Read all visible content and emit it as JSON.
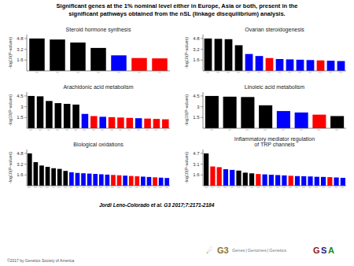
{
  "title": "Significant genes at the 1% nominal level either in Europe, Asia or both, present in the",
  "subtitle": "significant pathways obtained from the nSL (linkage disequilibrium) analysis.",
  "annotations": [
    "Jordi Leno-Colorado et al. G3 2017;7:2171-2184",
    "©2017 by Genetics Society of America",
    "☄",
    "G3",
    "Genes | Genomes | Genetics",
    "G",
    "S",
    "A"
  ],
  "chart_data": [
    {
      "type": "bar",
      "title": "Steroid hormone synthesis",
      "ylabel": "-log10(P-values)",
      "categories": [
        "|",
        "|",
        "|",
        "|",
        "|",
        "|",
        "|"
      ],
      "values": [
        4.8,
        4.65,
        4.2,
        3.4,
        2.3,
        1.9,
        1.85
      ],
      "colors": [
        "black",
        "black",
        "black",
        "black",
        "blue",
        "red",
        "red"
      ],
      "ylim": [
        0,
        5.376
      ],
      "yticks": [
        1.6,
        3.2,
        4.8
      ],
      "grid": false
    },
    {
      "type": "bar",
      "title": "Ovarian steroidogenesis",
      "ylabel": "-log10(P-values)",
      "categories": [
        "|",
        "|",
        "|",
        "|",
        "|",
        "|",
        "|",
        "|",
        "|",
        "|",
        "|",
        "|",
        "|",
        "|"
      ],
      "values": [
        4.8,
        4.75,
        4.7,
        3.8,
        2.5,
        2.2,
        1.9,
        1.75,
        1.7,
        1.65,
        1.6,
        1.55,
        1.5,
        1.45
      ],
      "colors": [
        "black",
        "black",
        "black",
        "black",
        "blue",
        "blue",
        "red",
        "blue",
        "blue",
        "blue",
        "blue",
        "red",
        "blue",
        "blue"
      ],
      "ylim": [
        0,
        5.376
      ],
      "yticks": [
        1.6,
        3.2,
        4.8
      ],
      "grid": false
    },
    {
      "type": "bar",
      "title": "Arachidonic acid metabolism",
      "ylabel": "-log10(P-values)",
      "categories": [
        "|",
        "|",
        "|",
        "|",
        "|",
        "|",
        "|",
        "|",
        "|",
        "|",
        "|",
        "|",
        "|",
        "|",
        "|",
        "|"
      ],
      "values": [
        4.5,
        4.45,
        3.8,
        3.5,
        3.4,
        3.3,
        2.0,
        1.7,
        1.6,
        1.55,
        1.5,
        1.45,
        1.4,
        1.35,
        1.3,
        1.25
      ],
      "colors": [
        "black",
        "black",
        "black",
        "black",
        "black",
        "black",
        "blue",
        "red",
        "blue",
        "red",
        "red",
        "red",
        "blue",
        "red",
        "red",
        "red"
      ],
      "ylim": [
        0,
        5.04
      ],
      "yticks": [
        1.5,
        3,
        4.5
      ],
      "grid": false
    },
    {
      "type": "bar",
      "title": "Linoleic acid metabolism",
      "ylabel": "-log10(P-values)",
      "categories": [
        "|",
        "|",
        "|",
        "|",
        "|",
        "|",
        "|",
        "|"
      ],
      "values": [
        4.5,
        4.4,
        4.35,
        3.2,
        2.4,
        2.2,
        1.9,
        1.7
      ],
      "colors": [
        "black",
        "black",
        "black",
        "black",
        "blue",
        "blue",
        "red",
        "black"
      ],
      "ylim": [
        0,
        5.04
      ],
      "yticks": [
        1.5,
        3,
        4.5
      ],
      "grid": false
    },
    {
      "type": "bar",
      "title": "Biological oxidations",
      "ylabel": "-log10(P-values)",
      "categories": [
        "|",
        "|",
        "|",
        "|",
        "|",
        "|",
        "|",
        "|",
        "|",
        "|",
        "|",
        "|",
        "|",
        "|",
        "|",
        "|",
        "|",
        "|",
        "|",
        "|",
        "|",
        "|",
        "|",
        "|"
      ],
      "values": [
        4.8,
        3.5,
        3.0,
        2.8,
        2.6,
        2.5,
        2.2,
        2.0,
        1.9,
        1.85,
        1.8,
        1.75,
        1.7,
        1.65,
        1.6,
        1.55,
        1.5,
        1.45,
        1.4,
        1.35,
        1.3,
        1.25,
        1.2,
        1.15
      ],
      "colors": [
        "black",
        "black",
        "black",
        "black",
        "black",
        "black",
        "black",
        "blue",
        "blue",
        "blue",
        "blue",
        "blue",
        "blue",
        "blue",
        "red",
        "red",
        "blue",
        "red",
        "red",
        "blue",
        "blue",
        "red",
        "blue",
        "blue"
      ],
      "ylim": [
        0,
        5.376
      ],
      "yticks": [
        1.6,
        3.2,
        4.8
      ],
      "grid": false
    },
    {
      "type": "bar",
      "title": "Inflammatory mediator regulation\nof TRP channels",
      "ylabel": "-log10(P-values)",
      "categories": [
        "|",
        "|",
        "|",
        "|",
        "|",
        "|",
        "|",
        "|",
        "|",
        "|",
        "|",
        "|",
        "|",
        "|",
        "|",
        "|",
        "|",
        "|",
        "|",
        "|",
        "|",
        "|"
      ],
      "values": [
        4.7,
        2.8,
        2.7,
        2.4,
        2.3,
        2.2,
        1.9,
        1.8,
        1.7,
        1.65,
        1.6,
        1.55,
        1.5,
        1.45,
        1.4,
        1.38,
        1.35,
        1.3,
        1.28,
        1.25,
        1.2,
        1.15
      ],
      "colors": [
        "black",
        "red",
        "red",
        "blue",
        "blue",
        "black",
        "black",
        "black",
        "red",
        "blue",
        "blue",
        "blue",
        "blue",
        "red",
        "blue",
        "blue",
        "blue",
        "blue",
        "blue",
        "red",
        "blue",
        "blue"
      ],
      "ylim": [
        0,
        5.264
      ],
      "yticks": [
        {
          "value": 1.5666666666666667,
          "label": "1.6"
        },
        {
          "value": 3.1333333333333333,
          "label": "3.1"
        },
        {
          "value": 4.7,
          "label": "4.7"
        }
      ],
      "grid": false
    }
  ]
}
